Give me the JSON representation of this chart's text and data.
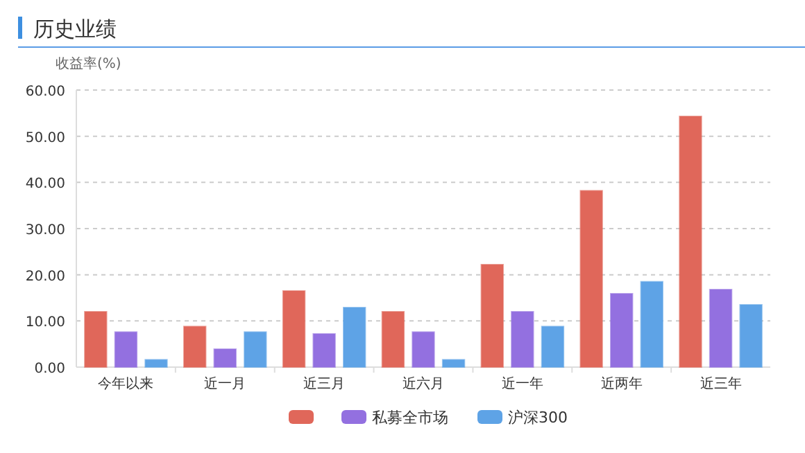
{
  "chart_data": {
    "type": "bar",
    "title": "历史业绩",
    "ylabel": "收益率(%)",
    "categories": [
      "今年以来",
      "近一月",
      "近三月",
      "近六月",
      "近一年",
      "近两年",
      "近三年"
    ],
    "series": [
      {
        "color": "#e0675a",
        "values": [
          12.0,
          8.8,
          16.5,
          12.0,
          22.2,
          38.2,
          54.3
        ]
      },
      {
        "name": "私募全市场",
        "color": "#9370e0",
        "values": [
          7.6,
          3.9,
          7.2,
          7.6,
          12.0,
          15.9,
          16.8
        ]
      },
      {
        "name": "沪深300",
        "color": "#5ea3e6",
        "values": [
          1.6,
          7.6,
          12.9,
          1.6,
          8.8,
          18.5,
          13.5
        ]
      }
    ],
    "ylim": [
      0,
      60
    ],
    "yticks": [
      {
        "value": 0,
        "label": "0.00"
      },
      {
        "value": 10,
        "label": "10.00"
      },
      {
        "value": 20,
        "label": "20.00"
      },
      {
        "value": 30,
        "label": "30.00"
      },
      {
        "value": 40,
        "label": "40.00"
      },
      {
        "value": 50,
        "label": "50.00"
      },
      {
        "value": 60,
        "label": "60.00"
      }
    ],
    "grid": "y",
    "legend": "bottom"
  }
}
